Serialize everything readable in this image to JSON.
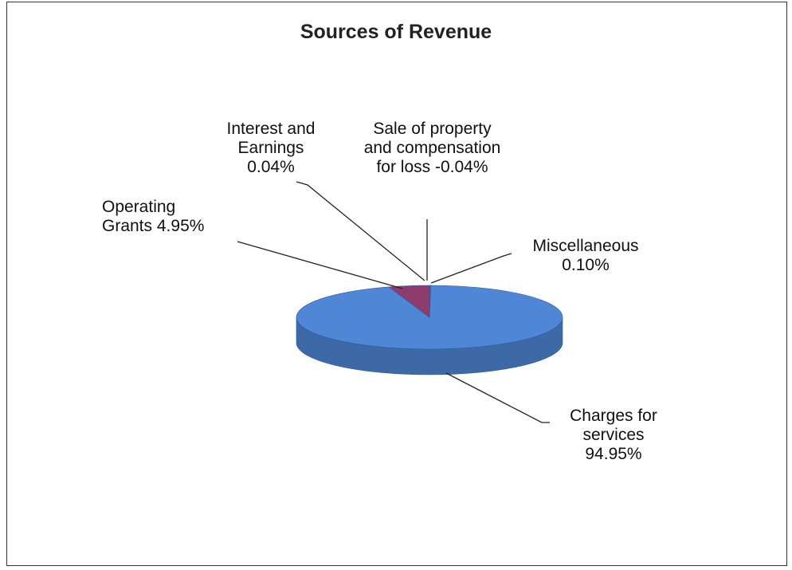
{
  "chart_data": {
    "type": "pie",
    "title": "Sources of Revenue",
    "categories": [
      "Interest and Earnings",
      "Sale of property and compensation for loss",
      "Miscellaneous",
      "Charges for services",
      "Operating Grants"
    ],
    "values": [
      0.04,
      -0.04,
      0.1,
      94.95,
      4.95
    ],
    "value_labels": [
      "0.04%",
      "-0.04%",
      "0.10%",
      "94.95%",
      "4.95%"
    ],
    "colors": [
      "#9aa9c9",
      "#c8c8e0",
      "#6f8fb0",
      "#4f86d6",
      "#8e3b6e"
    ]
  }
}
